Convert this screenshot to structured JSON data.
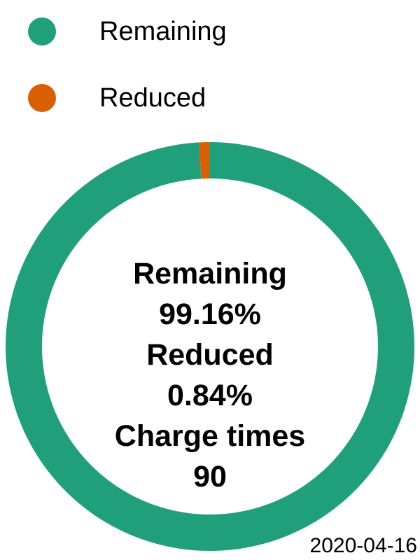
{
  "chart_data": {
    "type": "pie",
    "categories": [
      "Remaining",
      "Reduced"
    ],
    "values": [
      99.16,
      0.84
    ],
    "unit": "%",
    "colors": [
      "#1fa07a",
      "#d95f02"
    ],
    "legend_position": "top-left",
    "center_labels": {
      "remaining_label": "Remaining",
      "remaining_value": "99.16%",
      "reduced_label": "Reduced",
      "reduced_value": "0.84%",
      "charge_times_label": "Charge times",
      "charge_times_value": "90"
    }
  },
  "legend": {
    "items": [
      {
        "label": "Remaining",
        "color": "#1fa07a"
      },
      {
        "label": "Reduced",
        "color": "#d95f02"
      }
    ]
  },
  "date": "2020-04-16"
}
